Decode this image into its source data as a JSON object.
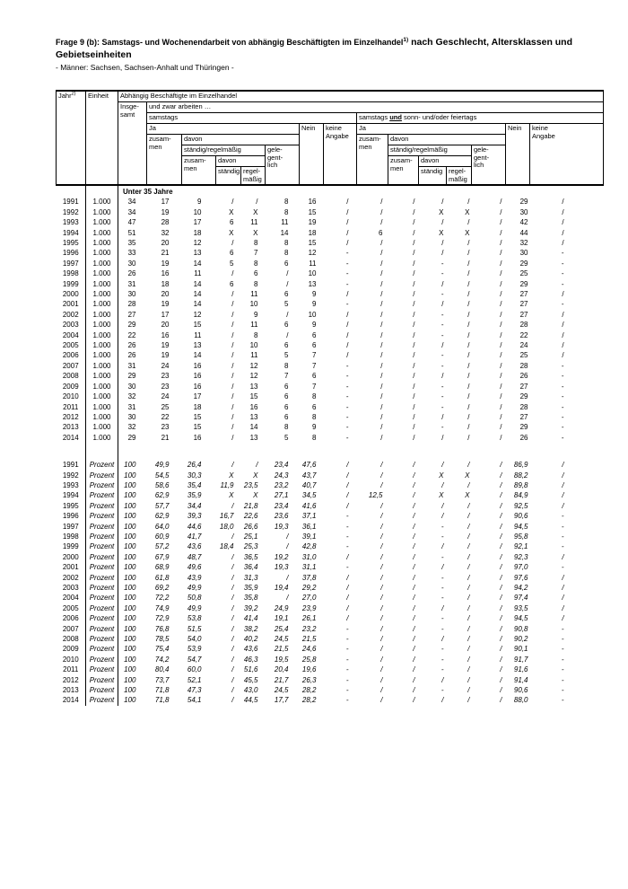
{
  "document": {
    "title_main": "Frage 9 (b): Samstags- und Wochenendarbeit von abhängig Beschäftigten im Einzelhandel",
    "title_footnote": "1)",
    "title_emphasis": " nach Geschlecht, Altersklassen und Gebietseinheiten",
    "subtitle": "- Männer: Sachsen, Sachsen-Anhalt und Thüringen -"
  },
  "table": {
    "header": {
      "jahr": "Jahr",
      "jahr_footnote": "2)",
      "einheit": "Einheit",
      "abhaengig": "Abhängig Beschäftigte im Einzelhandel",
      "insgesamt": "Insge-\nsamt",
      "und_zwar": "und zwar arbeiten …",
      "samstags": "samstags",
      "samstags_und": {
        "pre": "samstags ",
        "und": "und",
        "post": " sonn- und/oder feiertags"
      },
      "ja": "Ja",
      "nein": "Nein",
      "keine_angabe": "keine\nAngabe",
      "zusammen": "zusam-\nmen",
      "davon": "davon",
      "staendig_regelmaessig": "ständig/regelmäßig",
      "gelegentlich": "gele-\ngent-\nlich",
      "staendig": "ständig",
      "regelmaessig": "regel-\nmäßig"
    },
    "group_label": "Unter 35 Jahre",
    "blocks": [
      {
        "unit": "1.000",
        "italic": false,
        "rows": [
          {
            "year": "1991",
            "values": [
              "34",
              "17",
              "9",
              "/",
              "/",
              "8",
              "16",
              "/",
              "/",
              "/",
              "/",
              "/",
              "/",
              "29",
              "/"
            ]
          },
          {
            "year": "1992",
            "values": [
              "34",
              "19",
              "10",
              "X",
              "X",
              "8",
              "15",
              "/",
              "/",
              "/",
              "X",
              "X",
              "/",
              "30",
              "/"
            ]
          },
          {
            "year": "1993",
            "values": [
              "47",
              "28",
              "17",
              "6",
              "11",
              "11",
              "19",
              "/",
              "/",
              "/",
              "/",
              "/",
              "/",
              "42",
              "/"
            ]
          },
          {
            "year": "1994",
            "values": [
              "51",
              "32",
              "18",
              "X",
              "X",
              "14",
              "18",
              "/",
              "6",
              "/",
              "X",
              "X",
              "/",
              "44",
              "/"
            ]
          },
          {
            "year": "1995",
            "values": [
              "35",
              "20",
              "12",
              "/",
              "8",
              "8",
              "15",
              "/",
              "/",
              "/",
              "/",
              "/",
              "/",
              "32",
              "/"
            ]
          },
          {
            "year": "1996",
            "values": [
              "33",
              "21",
              "13",
              "6",
              "7",
              "8",
              "12",
              "-",
              "/",
              "/",
              "/",
              "/",
              "/",
              "30",
              "-"
            ]
          },
          {
            "year": "1997",
            "values": [
              "30",
              "19",
              "14",
              "5",
              "8",
              "6",
              "11",
              "-",
              "/",
              "/",
              "-",
              "/",
              "/",
              "29",
              "-"
            ]
          },
          {
            "year": "1998",
            "values": [
              "26",
              "16",
              "11",
              "/",
              "6",
              "/",
              "10",
              "-",
              "/",
              "/",
              "-",
              "/",
              "/",
              "25",
              "-"
            ]
          },
          {
            "year": "1999",
            "values": [
              "31",
              "18",
              "14",
              "6",
              "8",
              "/",
              "13",
              "-",
              "/",
              "/",
              "/",
              "/",
              "/",
              "29",
              "-"
            ]
          },
          {
            "year": "2000",
            "values": [
              "30",
              "20",
              "14",
              "/",
              "11",
              "6",
              "9",
              "/",
              "/",
              "/",
              "-",
              "/",
              "/",
              "27",
              "/"
            ]
          },
          {
            "year": "2001",
            "values": [
              "28",
              "19",
              "14",
              "/",
              "10",
              "5",
              "9",
              "-",
              "/",
              "/",
              "/",
              "/",
              "/",
              "27",
              "-"
            ]
          },
          {
            "year": "2002",
            "values": [
              "27",
              "17",
              "12",
              "/",
              "9",
              "/",
              "10",
              "/",
              "/",
              "/",
              "-",
              "/",
              "/",
              "27",
              "/"
            ]
          },
          {
            "year": "2003",
            "values": [
              "29",
              "20",
              "15",
              "/",
              "11",
              "6",
              "9",
              "/",
              "/",
              "/",
              "-",
              "/",
              "/",
              "28",
              "/"
            ]
          },
          {
            "year": "2004",
            "values": [
              "22",
              "16",
              "11",
              "/",
              "8",
              "/",
              "6",
              "/",
              "/",
              "/",
              "-",
              "/",
              "/",
              "22",
              "/"
            ]
          },
          {
            "year": "2005",
            "values": [
              "26",
              "19",
              "13",
              "/",
              "10",
              "6",
              "6",
              "/",
              "/",
              "/",
              "/",
              "/",
              "/",
              "24",
              "/"
            ]
          },
          {
            "year": "2006",
            "values": [
              "26",
              "19",
              "14",
              "/",
              "11",
              "5",
              "7",
              "/",
              "/",
              "/",
              "-",
              "/",
              "/",
              "25",
              "/"
            ]
          },
          {
            "year": "2007",
            "values": [
              "31",
              "24",
              "16",
              "/",
              "12",
              "8",
              "7",
              "-",
              "/",
              "/",
              "-",
              "/",
              "/",
              "28",
              "-"
            ]
          },
          {
            "year": "2008",
            "values": [
              "29",
              "23",
              "16",
              "/",
              "12",
              "7",
              "6",
              "-",
              "/",
              "/",
              "/",
              "/",
              "/",
              "26",
              "-"
            ]
          },
          {
            "year": "2009",
            "values": [
              "30",
              "23",
              "16",
              "/",
              "13",
              "6",
              "7",
              "-",
              "/",
              "/",
              "-",
              "/",
              "/",
              "27",
              "-"
            ]
          },
          {
            "year": "2010",
            "values": [
              "32",
              "24",
              "17",
              "/",
              "15",
              "6",
              "8",
              "-",
              "/",
              "/",
              "-",
              "/",
              "/",
              "29",
              "-"
            ]
          },
          {
            "year": "2011",
            "values": [
              "31",
              "25",
              "18",
              "/",
              "16",
              "6",
              "6",
              "-",
              "/",
              "/",
              "-",
              "/",
              "/",
              "28",
              "-"
            ]
          },
          {
            "year": "2012",
            "values": [
              "30",
              "22",
              "15",
              "/",
              "13",
              "6",
              "8",
              "-",
              "/",
              "/",
              "/",
              "/",
              "/",
              "27",
              "-"
            ]
          },
          {
            "year": "2013",
            "values": [
              "32",
              "23",
              "15",
              "/",
              "14",
              "8",
              "9",
              "-",
              "/",
              "/",
              "-",
              "/",
              "/",
              "29",
              "-"
            ]
          },
          {
            "year": "2014",
            "values": [
              "29",
              "21",
              "16",
              "/",
              "13",
              "5",
              "8",
              "-",
              "/",
              "/",
              "/",
              "/",
              "/",
              "26",
              "-"
            ]
          }
        ]
      },
      {
        "unit": "Prozent",
        "italic": true,
        "rows": [
          {
            "year": "1991",
            "values": [
              "100",
              "49,9",
              "26,4",
              "/",
              "/",
              "23,4",
              "47,6",
              "/",
              "/",
              "/",
              "/",
              "/",
              "/",
              "86,9",
              "/"
            ]
          },
          {
            "year": "1992",
            "values": [
              "100",
              "54,5",
              "30,3",
              "X",
              "X",
              "24,3",
              "43,7",
              "/",
              "/",
              "/",
              "X",
              "X",
              "/",
              "88,2",
              "/"
            ]
          },
          {
            "year": "1993",
            "values": [
              "100",
              "58,6",
              "35,4",
              "11,9",
              "23,5",
              "23,2",
              "40,7",
              "/",
              "/",
              "/",
              "/",
              "/",
              "/",
              "89,8",
              "/"
            ]
          },
          {
            "year": "1994",
            "values": [
              "100",
              "62,9",
              "35,9",
              "X",
              "X",
              "27,1",
              "34,5",
              "/",
              "12,5",
              "/",
              "X",
              "X",
              "/",
              "84,9",
              "/"
            ]
          },
          {
            "year": "1995",
            "values": [
              "100",
              "57,7",
              "34,4",
              "/",
              "21,8",
              "23,4",
              "41,6",
              "/",
              "/",
              "/",
              "/",
              "/",
              "/",
              "92,5",
              "/"
            ]
          },
          {
            "year": "1996",
            "values": [
              "100",
              "62,9",
              "39,3",
              "16,7",
              "22,6",
              "23,6",
              "37,1",
              "-",
              "/",
              "/",
              "/",
              "/",
              "/",
              "90,6",
              "-"
            ]
          },
          {
            "year": "1997",
            "values": [
              "100",
              "64,0",
              "44,6",
              "18,0",
              "26,6",
              "19,3",
              "36,1",
              "-",
              "/",
              "/",
              "-",
              "/",
              "/",
              "94,5",
              "-"
            ]
          },
          {
            "year": "1998",
            "values": [
              "100",
              "60,9",
              "41,7",
              "/",
              "25,1",
              "/",
              "39,1",
              "-",
              "/",
              "/",
              "-",
              "/",
              "/",
              "95,8",
              "-"
            ]
          },
          {
            "year": "1999",
            "values": [
              "100",
              "57,2",
              "43,6",
              "18,4",
              "25,3",
              "/",
              "42,8",
              "-",
              "/",
              "/",
              "/",
              "/",
              "/",
              "92,1",
              "-"
            ]
          },
          {
            "year": "2000",
            "values": [
              "100",
              "67,9",
              "48,7",
              "/",
              "36,5",
              "19,2",
              "31,0",
              "/",
              "/",
              "/",
              "-",
              "/",
              "/",
              "92,3",
              "/"
            ]
          },
          {
            "year": "2001",
            "values": [
              "100",
              "68,9",
              "49,6",
              "/",
              "36,4",
              "19,3",
              "31,1",
              "-",
              "/",
              "/",
              "/",
              "/",
              "/",
              "97,0",
              "-"
            ]
          },
          {
            "year": "2002",
            "values": [
              "100",
              "61,8",
              "43,9",
              "/",
              "31,3",
              "/",
              "37,8",
              "/",
              "/",
              "/",
              "-",
              "/",
              "/",
              "97,6",
              "/"
            ]
          },
          {
            "year": "2003",
            "values": [
              "100",
              "69,2",
              "49,9",
              "/",
              "35,9",
              "19,4",
              "29,2",
              "/",
              "/",
              "/",
              "-",
              "/",
              "/",
              "94,2",
              "/"
            ]
          },
          {
            "year": "2004",
            "values": [
              "100",
              "72,2",
              "50,8",
              "/",
              "35,8",
              "/",
              "27,0",
              "/",
              "/",
              "/",
              "-",
              "/",
              "/",
              "97,4",
              "/"
            ]
          },
          {
            "year": "2005",
            "values": [
              "100",
              "74,9",
              "49,9",
              "/",
              "39,2",
              "24,9",
              "23,9",
              "/",
              "/",
              "/",
              "/",
              "/",
              "/",
              "93,5",
              "/"
            ]
          },
          {
            "year": "2006",
            "values": [
              "100",
              "72,9",
              "53,8",
              "/",
              "41,4",
              "19,1",
              "26,1",
              "/",
              "/",
              "/",
              "-",
              "/",
              "/",
              "94,5",
              "/"
            ]
          },
          {
            "year": "2007",
            "values": [
              "100",
              "76,8",
              "51,5",
              "/",
              "38,2",
              "25,4",
              "23,2",
              "-",
              "/",
              "/",
              "-",
              "/",
              "/",
              "90,8",
              "-"
            ]
          },
          {
            "year": "2008",
            "values": [
              "100",
              "78,5",
              "54,0",
              "/",
              "40,2",
              "24,5",
              "21,5",
              "-",
              "/",
              "/",
              "/",
              "/",
              "/",
              "90,2",
              "-"
            ]
          },
          {
            "year": "2009",
            "values": [
              "100",
              "75,4",
              "53,9",
              "/",
              "43,6",
              "21,5",
              "24,6",
              "-",
              "/",
              "/",
              "-",
              "/",
              "/",
              "90,1",
              "-"
            ]
          },
          {
            "year": "2010",
            "values": [
              "100",
              "74,2",
              "54,7",
              "/",
              "46,3",
              "19,5",
              "25,8",
              "-",
              "/",
              "/",
              "-",
              "/",
              "/",
              "91,7",
              "-"
            ]
          },
          {
            "year": "2011",
            "values": [
              "100",
              "80,4",
              "60,0",
              "/",
              "51,6",
              "20,4",
              "19,6",
              "-",
              "/",
              "/",
              "-",
              "/",
              "/",
              "91,6",
              "-"
            ]
          },
          {
            "year": "2012",
            "values": [
              "100",
              "73,7",
              "52,1",
              "/",
              "45,5",
              "21,7",
              "26,3",
              "-",
              "/",
              "/",
              "/",
              "/",
              "/",
              "91,4",
              "-"
            ]
          },
          {
            "year": "2013",
            "values": [
              "100",
              "71,8",
              "47,3",
              "/",
              "43,0",
              "24,5",
              "28,2",
              "-",
              "/",
              "/",
              "-",
              "/",
              "/",
              "90,6",
              "-"
            ]
          },
          {
            "year": "2014",
            "values": [
              "100",
              "71,8",
              "54,1",
              "/",
              "44,5",
              "17,7",
              "28,2",
              "-",
              "/",
              "/",
              "/",
              "/",
              "/",
              "88,0",
              "-"
            ]
          }
        ]
      }
    ]
  }
}
